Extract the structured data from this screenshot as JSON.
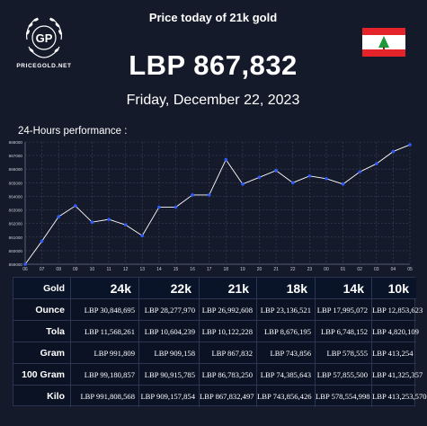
{
  "brand": {
    "logo_letters": "GP",
    "name": "PRICEGOLD.NET"
  },
  "header": {
    "title": "Price today of 21k gold",
    "price": "LBP 867,832",
    "date": "Friday, December 22, 2023",
    "flag": "lebanon-flag"
  },
  "chart_label": "24-Hours performance :",
  "chart_data": {
    "type": "line",
    "x": [
      "06",
      "07",
      "08",
      "09",
      "10",
      "11",
      "12",
      "13",
      "14",
      "15",
      "16",
      "17",
      "18",
      "19",
      "20",
      "21",
      "22",
      "23",
      "00",
      "01",
      "02",
      "03",
      "04",
      "05"
    ],
    "values": [
      859000,
      860700,
      862500,
      863300,
      862100,
      862300,
      861900,
      861100,
      863200,
      863200,
      864100,
      864100,
      866700,
      864900,
      865400,
      865900,
      865000,
      865500,
      865300,
      864900,
      865800,
      866400,
      867300,
      867800
    ],
    "yticks": [
      "859000",
      "860000",
      "861000",
      "862000",
      "863000",
      "864000",
      "865000",
      "866000",
      "867000",
      "868000"
    ],
    "ylim": [
      859000,
      868000
    ],
    "grid": true,
    "line_color": "#ffffff",
    "point_color": "#2f5bff"
  },
  "table": {
    "corner": "Gold",
    "columns": [
      "24k",
      "22k",
      "21k",
      "18k",
      "14k",
      "10k"
    ],
    "rows": [
      {
        "label": "Ounce",
        "values": [
          "LBP 30,848,695",
          "LBP 28,277,970",
          "LBP 26,992,608",
          "LBP 23,136,521",
          "LBP 17,995,072",
          "LBP 12,853,623"
        ]
      },
      {
        "label": "Tola",
        "values": [
          "LBP 11,568,261",
          "LBP 10,604,239",
          "LBP 10,122,228",
          "LBP 8,676,195",
          "LBP 6,748,152",
          "LBP 4,820,109"
        ]
      },
      {
        "label": "Gram",
        "values": [
          "LBP 991,809",
          "LBP 909,158",
          "LBP 867,832",
          "LBP 743,856",
          "LBP 578,555",
          "LBP 413,254"
        ]
      },
      {
        "label": "100 Gram",
        "values": [
          "LBP 99,180,857",
          "LBP 90,915,785",
          "LBP 86,783,250",
          "LBP 74,385,643",
          "LBP 57,855,500",
          "LBP 41,325,357"
        ]
      },
      {
        "label": "Kilo",
        "values": [
          "LBP 991,808,568",
          "LBP 909,157,854",
          "LBP 867,832,497",
          "LBP 743,856,426",
          "LBP 578,554,998",
          "LBP 413,253,570"
        ]
      }
    ]
  },
  "colors": {
    "background": "#151a2a",
    "table_bg": "#0b1224",
    "flag_red": "#e5232b",
    "cedar_green": "#1e9a3a"
  }
}
